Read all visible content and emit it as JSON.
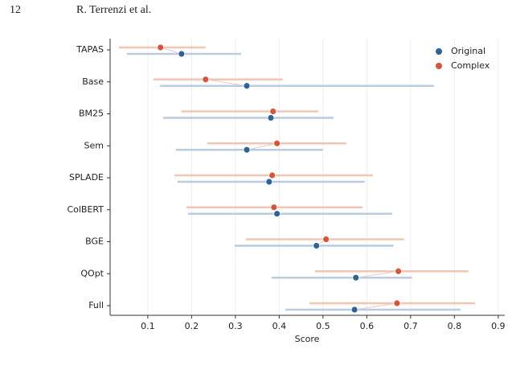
{
  "header": {
    "page_number": "12",
    "authors": "R. Terrenzi et al."
  },
  "chart_data": {
    "type": "dumbbell",
    "x_label": "Score",
    "categories": [
      "TAPAS",
      "Base",
      "BM25",
      "Sem",
      "SPLADE",
      "ColBERT",
      "BGE",
      "QOpt",
      "Full"
    ],
    "series": [
      {
        "name": "Original",
        "color": "#2e6395",
        "range_color": "#b9cce0",
        "values": [
          0.177,
          0.326,
          0.381,
          0.326,
          0.377,
          0.395,
          0.485,
          0.575,
          0.572
        ],
        "lo": [
          0.052,
          0.128,
          0.135,
          0.164,
          0.168,
          0.192,
          0.298,
          0.383,
          0.414
        ],
        "hi": [
          0.313,
          0.753,
          0.524,
          0.5,
          0.595,
          0.658,
          0.661,
          0.703,
          0.814
        ]
      },
      {
        "name": "Complex",
        "color": "#d4553a",
        "range_color": "#f3c5b5",
        "values": [
          0.129,
          0.232,
          0.386,
          0.395,
          0.384,
          0.388,
          0.507,
          0.672,
          0.669
        ],
        "lo": [
          0.034,
          0.113,
          0.177,
          0.236,
          0.161,
          0.188,
          0.324,
          0.482,
          0.469
        ],
        "hi": [
          0.232,
          0.408,
          0.489,
          0.553,
          0.614,
          0.59,
          0.685,
          0.832,
          0.847
        ]
      }
    ],
    "xlim": [
      0.014,
      0.915
    ],
    "xticks": [
      0.1,
      0.2,
      0.3,
      0.4,
      0.5,
      0.6,
      0.7,
      0.8,
      0.9
    ],
    "grid": true,
    "legend": "upper right"
  }
}
